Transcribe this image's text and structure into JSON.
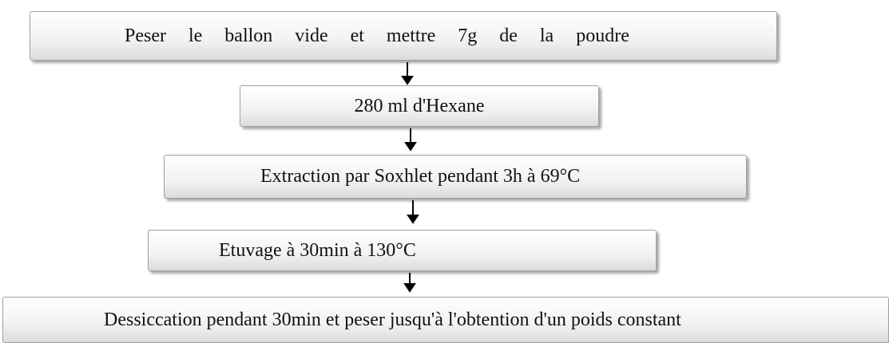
{
  "nodes": [
    {
      "label": "Peser le ballon vide et mettre 7g de la poudre"
    },
    {
      "label": "280 ml d'Hexane"
    },
    {
      "label": "Extraction par Soxhlet pendant 3h à 69°C"
    },
    {
      "label": "Etuvage à 30min à 130°C"
    },
    {
      "label": "Dessiccation pendant 30min et peser jusqu'à l'obtention d'un poids constant"
    }
  ]
}
